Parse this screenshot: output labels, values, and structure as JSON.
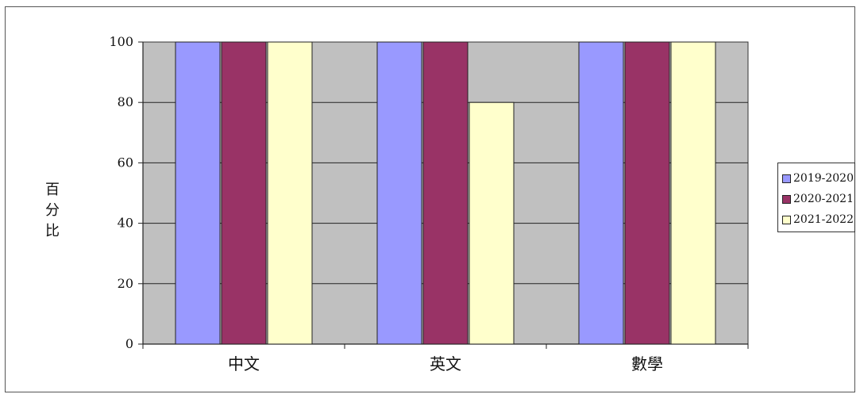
{
  "chart_data": {
    "type": "bar",
    "title": "",
    "ylabel": "百分比",
    "xlabel": "",
    "categories": [
      "中文",
      "英文",
      "數學"
    ],
    "series": [
      {
        "name": "2019-2020",
        "color": "#9999ff",
        "values": [
          100,
          100,
          100
        ]
      },
      {
        "name": "2020-2021",
        "color": "#993366",
        "values": [
          100,
          100,
          100
        ]
      },
      {
        "name": "2021-2022",
        "color": "#ffffcc",
        "values": [
          100,
          80,
          100
        ]
      }
    ],
    "ylim": [
      0,
      100
    ],
    "yticks": [
      "0",
      "20",
      "40",
      "60",
      "80",
      "100"
    ],
    "grid": true,
    "plot_background": "#c0c0c0",
    "legend_position": "right"
  }
}
